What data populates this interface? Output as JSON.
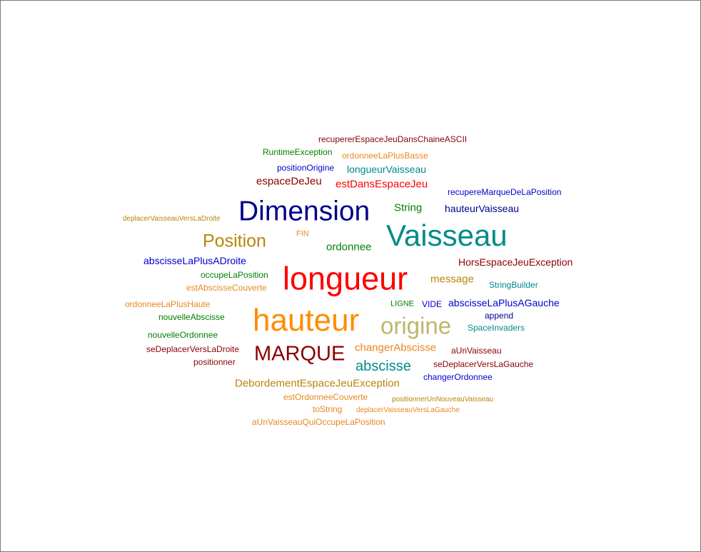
{
  "words": [
    {
      "text": "recupererEspaceJeuDansChaineASCII",
      "color": "#8b0000"
    },
    {
      "text": "RuntimeException",
      "color": "#008000"
    },
    {
      "text": "ordonneeLaPlusBasse",
      "color": "#e8871e"
    },
    {
      "text": "positionOrigine",
      "color": "#0000cd"
    },
    {
      "text": "longueurVaisseau",
      "color": "#008b8b"
    },
    {
      "text": "espaceDeJeu",
      "color": "#8b0000"
    },
    {
      "text": "estDansEspaceJeu",
      "color": "#ff0000"
    },
    {
      "text": "recupereMarqueDeLaPosition",
      "color": "#0000cd"
    },
    {
      "text": "String",
      "color": "#008000"
    },
    {
      "text": "hauteurVaisseau",
      "color": "#00008b"
    },
    {
      "text": "Dimension",
      "color": "#00008b"
    },
    {
      "text": "deplacerVaisseauVersLaDroite",
      "color": "#b8860b"
    },
    {
      "text": "Vaisseau",
      "color": "#008b8b"
    },
    {
      "text": "Position",
      "color": "#b8860b"
    },
    {
      "text": "FIN",
      "color": "#e8871e"
    },
    {
      "text": "ordonnee",
      "color": "#008000"
    },
    {
      "text": "HorsEspaceJeuException",
      "color": "#8b0000"
    },
    {
      "text": "abscisseLaPlusADroite",
      "color": "#0000cd"
    },
    {
      "text": "longueur",
      "color": "#ff0000"
    },
    {
      "text": "occupeLaPosition",
      "color": "#008000"
    },
    {
      "text": "message",
      "color": "#b8860b"
    },
    {
      "text": "StringBuilder",
      "color": "#008b8b"
    },
    {
      "text": "estAbscisseCouverte",
      "color": "#e8871e"
    },
    {
      "text": "ordonneeLaPlusHaute",
      "color": "#e8871e"
    },
    {
      "text": "LIGNE",
      "color": "#008000"
    },
    {
      "text": "VIDE",
      "color": "#0000cd"
    },
    {
      "text": "abscisseLaPlusAGauche",
      "color": "#0000cd"
    },
    {
      "text": "hauteur",
      "color": "#ff8c00"
    },
    {
      "text": "nouvelleAbscisse",
      "color": "#008000"
    },
    {
      "text": "origine",
      "color": "#bdb76b"
    },
    {
      "text": "append",
      "color": "#00008b"
    },
    {
      "text": "SpaceInvaders",
      "color": "#008b8b"
    },
    {
      "text": "nouvelleOrdonnee",
      "color": "#008000"
    },
    {
      "text": "seDeplacerVersLaDroite",
      "color": "#8b0000"
    },
    {
      "text": "MARQUE",
      "color": "#8b0000"
    },
    {
      "text": "changerAbscisse",
      "color": "#e8871e"
    },
    {
      "text": "aUnVaisseau",
      "color": "#8b0000"
    },
    {
      "text": "positionner",
      "color": "#8b0000"
    },
    {
      "text": "abscisse",
      "color": "#008b8b"
    },
    {
      "text": "seDeplacerVersLaGauche",
      "color": "#8b0000"
    },
    {
      "text": "changerOrdonnee",
      "color": "#0000cd"
    },
    {
      "text": "DebordementEspaceJeuException",
      "color": "#b8860b"
    },
    {
      "text": "estOrdonneeCouverte",
      "color": "#e8871e"
    },
    {
      "text": "positionnerUnNouveauVaisseau",
      "color": "#b8860b"
    },
    {
      "text": "toString",
      "color": "#e8871e"
    },
    {
      "text": "deplacerVaisseauVersLaGauche",
      "color": "#e8871e"
    },
    {
      "text": "aUnVaisseauQuiOccupeLaPosition",
      "color": "#e8871e"
    }
  ]
}
